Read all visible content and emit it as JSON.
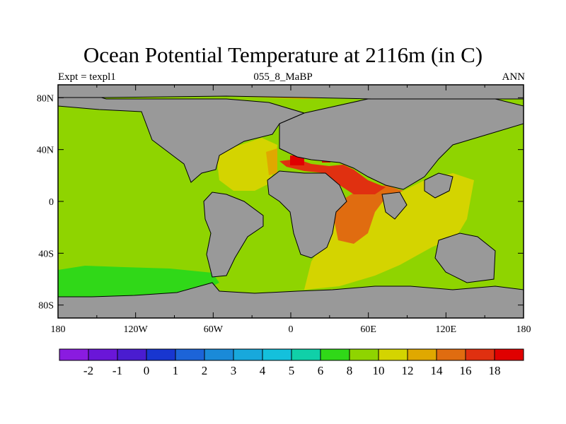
{
  "title": "Ocean Potential Temperature at 2116m (in C)",
  "subtitle_left": "Expt = texpl1",
  "subtitle_center": "055_8_MaBP",
  "subtitle_right": "ANN",
  "map": {
    "lon_range": [
      -180,
      180
    ],
    "lat_range": [
      -90,
      90
    ],
    "x_ticks": [
      {
        "lon": -180,
        "label": "180"
      },
      {
        "lon": -120,
        "label": "120W"
      },
      {
        "lon": -60,
        "label": "60W"
      },
      {
        "lon": 0,
        "label": "0"
      },
      {
        "lon": 60,
        "label": "60E"
      },
      {
        "lon": 120,
        "label": "120E"
      },
      {
        "lon": 180,
        "label": "180"
      }
    ],
    "y_ticks": [
      {
        "lat": 80,
        "label": "80N"
      },
      {
        "lat": 40,
        "label": "40N"
      },
      {
        "lat": 0,
        "label": "0"
      },
      {
        "lat": -40,
        "label": "40S"
      },
      {
        "lat": -80,
        "label": "80S"
      }
    ],
    "land_color": "#999999",
    "ocean_background_color": "#8fd400"
  },
  "colorbar": {
    "labels": [
      "-2",
      "-1",
      "0",
      "1",
      "2",
      "3",
      "4",
      "5",
      "6",
      "8",
      "10",
      "12",
      "14",
      "16",
      "18"
    ],
    "colors": [
      "#8a1be0",
      "#6a16d8",
      "#4a1cd0",
      "#1836d0",
      "#1c64d8",
      "#1a8ad8",
      "#18a8dc",
      "#14c0dc",
      "#10d0a8",
      "#30d818",
      "#8fd400",
      "#d4d400",
      "#e0a800",
      "#e06c10",
      "#e03010",
      "#e00000"
    ]
  }
}
